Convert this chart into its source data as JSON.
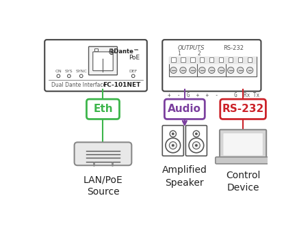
{
  "bg_color": "#ffffff",
  "colors": {
    "green": "#3cb54a",
    "purple": "#7b3f9e",
    "red": "#cc2229",
    "gray": "#888888",
    "dark_gray": "#555555",
    "box_border": "#444444",
    "text_dark": "#222222"
  },
  "labels": {
    "eth": "Eth",
    "audio": "Audio",
    "rs232": "RS-232",
    "lan": "LAN/PoE\nSource",
    "speaker": "Amplified\nSpeaker",
    "control": "Control\nDevice"
  }
}
